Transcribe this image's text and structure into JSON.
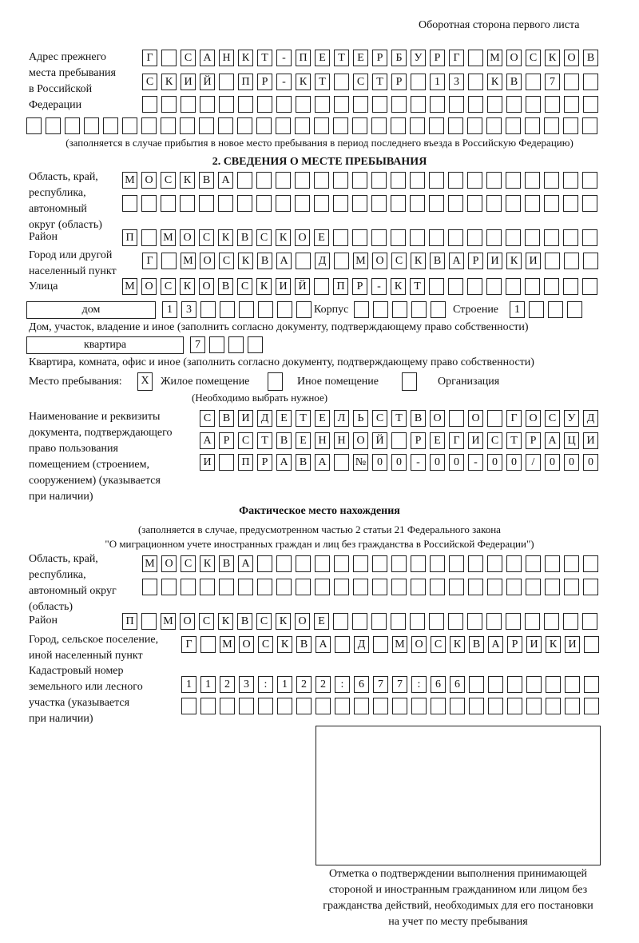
{
  "header": "Оборотная сторона первого листа",
  "prev_address": {
    "label": [
      "Адрес прежнего",
      "места пребывания",
      "в Российской",
      "Федерации"
    ],
    "rows": [
      [
        "Г",
        "",
        "С",
        "А",
        "Н",
        "К",
        "Т",
        "-",
        "П",
        "Е",
        "Т",
        "Е",
        "Р",
        "Б",
        "У",
        "Р",
        "Г",
        "",
        "М",
        "О",
        "С",
        "К",
        "О",
        "В"
      ],
      [
        "С",
        "К",
        "И",
        "Й",
        "",
        "П",
        "Р",
        "-",
        "К",
        "Т",
        "",
        "С",
        "Т",
        "Р",
        "",
        "1",
        "3",
        "",
        "К",
        "В",
        "",
        "7",
        "",
        ""
      ],
      [
        "",
        "",
        "",
        "",
        "",
        "",
        "",
        "",
        "",
        "",
        "",
        "",
        "",
        "",
        "",
        "",
        "",
        "",
        "",
        "",
        "",
        "",
        "",
        ""
      ],
      [
        "",
        "",
        "",
        "",
        "",
        "",
        "",
        "",
        "",
        "",
        "",
        "",
        "",
        "",
        "",
        "",
        "",
        "",
        "",
        "",
        "",
        "",
        "",
        "",
        "",
        "",
        "",
        "",
        "",
        ""
      ]
    ],
    "note": "(заполняется в случае прибытия в новое место пребывания в период последнего въезда в Российскую Федерацию)"
  },
  "section2": {
    "title": "2. СВЕДЕНИЯ О МЕСТЕ ПРЕБЫВАНИЯ",
    "region_label": [
      "Область, край,",
      "республика,",
      "автономный",
      "округ (область)"
    ],
    "region_rows": [
      [
        "М",
        "О",
        "С",
        "К",
        "В",
        "А",
        "",
        "",
        "",
        "",
        "",
        "",
        "",
        "",
        "",
        "",
        "",
        "",
        "",
        "",
        "",
        "",
        "",
        "",
        ""
      ],
      [
        "",
        "",
        "",
        "",
        "",
        "",
        "",
        "",
        "",
        "",
        "",
        "",
        "",
        "",
        "",
        "",
        "",
        "",
        "",
        "",
        "",
        "",
        "",
        "",
        ""
      ]
    ],
    "district_label": "Район",
    "district": [
      "П",
      "",
      "М",
      "О",
      "С",
      "К",
      "В",
      "С",
      "К",
      "О",
      "Е",
      "",
      "",
      "",
      "",
      "",
      "",
      "",
      "",
      "",
      "",
      "",
      "",
      "",
      ""
    ],
    "city_label": [
      "Город или другой",
      "населенный пункт"
    ],
    "city": [
      "Г",
      "",
      "М",
      "О",
      "С",
      "К",
      "В",
      "А",
      "",
      "Д",
      "",
      "М",
      "О",
      "С",
      "К",
      "В",
      "А",
      "Р",
      "И",
      "К",
      "И",
      "",
      "",
      ""
    ],
    "street_label": "Улица",
    "street": [
      "М",
      "О",
      "С",
      "К",
      "О",
      "В",
      "С",
      "К",
      "И",
      "Й",
      "",
      "П",
      "Р",
      "-",
      "К",
      "Т",
      "",
      "",
      "",
      "",
      "",
      "",
      "",
      "",
      ""
    ],
    "house_type": "дом",
    "house": [
      "1",
      "3",
      "",
      "",
      "",
      "",
      "",
      ""
    ],
    "korpus_label": "Корпус",
    "korpus": [
      "",
      "",
      "",
      "",
      ""
    ],
    "building_label": "Строение",
    "building": [
      "1",
      "",
      "",
      ""
    ],
    "house_note": "Дом, участок, владение и иное (заполнить согласно документу, подтверждающему право собственности)",
    "flat_type": "квартира",
    "flat": [
      "7",
      "",
      "",
      ""
    ],
    "flat_note": "Квартира, комната, офис и иное (заполнить согласно документу, подтверждающему право собственности)",
    "stay_label": "Место пребывания:",
    "stay_options": [
      {
        "mark": "X",
        "label": "Жилое помещение",
        "checked": true
      },
      {
        "mark": "",
        "label": "Иное помещение",
        "checked": false
      },
      {
        "mark": "",
        "label": "Организация",
        "checked": false
      }
    ],
    "stay_note": "(Необходимо выбрать нужное)",
    "doc_label": [
      "Наименование и реквизиты",
      "документа, подтверждающего",
      "право пользования",
      "помещением (строением,",
      "сооружением) (указывается",
      "при наличии)"
    ],
    "doc_rows": [
      [
        "С",
        "В",
        "И",
        "Д",
        "Е",
        "Т",
        "Е",
        "Л",
        "Ь",
        "С",
        "Т",
        "В",
        "О",
        "",
        "О",
        "",
        "Г",
        "О",
        "С",
        "У",
        "Д"
      ],
      [
        "А",
        "Р",
        "С",
        "Т",
        "В",
        "Е",
        "Н",
        "Н",
        "О",
        "Й",
        "",
        "Р",
        "Е",
        "Г",
        "И",
        "С",
        "Т",
        "Р",
        "А",
        "Ц",
        "И"
      ],
      [
        "И",
        "",
        "П",
        "Р",
        "А",
        "В",
        "А",
        "",
        "№",
        "0",
        "0",
        "-",
        "0",
        "0",
        "-",
        "0",
        "0",
        "/",
        "0",
        "0",
        "0"
      ]
    ]
  },
  "actual": {
    "title": "Фактическое место нахождения",
    "note": [
      "(заполняется в случае, предусмотренном частью 2 статьи 21 Федерального закона",
      "\"О миграционном учете иностранных граждан и лиц без гражданства в Российской Федерации\")"
    ],
    "region_label": [
      "Область, край,",
      "республика,",
      "автономный округ",
      "(область)"
    ],
    "region_rows": [
      [
        "М",
        "О",
        "С",
        "К",
        "В",
        "А",
        "",
        "",
        "",
        "",
        "",
        "",
        "",
        "",
        "",
        "",
        "",
        "",
        "",
        "",
        "",
        "",
        "",
        ""
      ],
      [
        "",
        "",
        "",
        "",
        "",
        "",
        "",
        "",
        "",
        "",
        "",
        "",
        "",
        "",
        "",
        "",
        "",
        "",
        "",
        "",
        "",
        "",
        "",
        ""
      ]
    ],
    "district_label": "Район",
    "district": [
      "П",
      "",
      "М",
      "О",
      "С",
      "К",
      "В",
      "С",
      "К",
      "О",
      "Е",
      "",
      "",
      "",
      "",
      "",
      "",
      "",
      "",
      "",
      "",
      "",
      "",
      "",
      ""
    ],
    "city_label": [
      "Город, сельское поселение,",
      "иной населенный пункт"
    ],
    "city": [
      "Г",
      "",
      "М",
      "О",
      "С",
      "К",
      "В",
      "А",
      "",
      "Д",
      "",
      "М",
      "О",
      "С",
      "К",
      "В",
      "А",
      "Р",
      "И",
      "К",
      "И",
      ""
    ],
    "cadastral_label": [
      "Кадастровый номер",
      "земельного или лесного",
      "участка (указывается",
      "при наличии)"
    ],
    "cadastral_rows": [
      [
        "1",
        "1",
        "2",
        "3",
        ":",
        "1",
        "2",
        "2",
        ":",
        "6",
        "7",
        "7",
        ":",
        "6",
        "6",
        "",
        "",
        "",
        "",
        "",
        "",
        ""
      ],
      [
        "",
        "",
        "",
        "",
        "",
        "",
        "",
        "",
        "",
        "",
        "",
        "",
        "",
        "",
        "",
        "",
        "",
        "",
        "",
        "",
        "",
        ""
      ]
    ]
  },
  "stamp_caption": [
    "Отметка о подтверждении выполнения принимающей",
    "стороной и иностранным гражданином или лицом без",
    "гражданства действий, необходимых для его постановки",
    "на учет по месту пребывания"
  ]
}
